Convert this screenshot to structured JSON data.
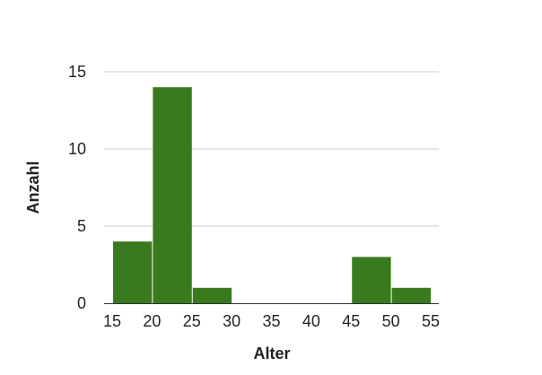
{
  "chart_data": {
    "type": "bar",
    "title": "",
    "xlabel": "Alter",
    "ylabel": "Anzahl",
    "x_ticks": [
      15,
      20,
      25,
      30,
      35,
      40,
      45,
      50,
      55
    ],
    "y_ticks": [
      0,
      5,
      10,
      15
    ],
    "xlim": [
      15,
      55
    ],
    "ylim": [
      0,
      15
    ],
    "grid": true,
    "bins": [
      {
        "start": 15,
        "end": 20,
        "value": 4
      },
      {
        "start": 20,
        "end": 25,
        "value": 14
      },
      {
        "start": 25,
        "end": 30,
        "value": 1
      },
      {
        "start": 30,
        "end": 35,
        "value": 0
      },
      {
        "start": 35,
        "end": 40,
        "value": 0
      },
      {
        "start": 40,
        "end": 45,
        "value": 0
      },
      {
        "start": 45,
        "end": 50,
        "value": 3
      },
      {
        "start": 50,
        "end": 55,
        "value": 1
      }
    ],
    "colors": {
      "bar": "#3a7a1e",
      "grid": "#cccccc",
      "axis": "#333333"
    }
  }
}
